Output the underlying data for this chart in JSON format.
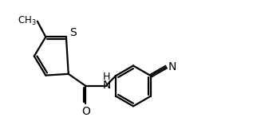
{
  "bg_color": "#ffffff",
  "bond_color": "#000000",
  "bond_width": 1.6,
  "figsize": [
    3.17,
    1.72
  ],
  "dpi": 100,
  "font_size": 10,
  "xlim": [
    0.0,
    10.0
  ],
  "ylim": [
    0.0,
    5.5
  ]
}
